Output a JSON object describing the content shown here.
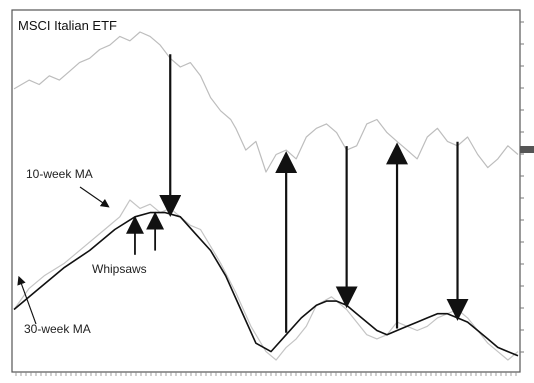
{
  "chart_data": {
    "type": "line",
    "title": "MSCI Italian ETF",
    "xlabel": "",
    "ylabel": "",
    "legend": "none",
    "grid": false,
    "x_range": [
      0,
      100
    ],
    "price_panel": {
      "series": [
        {
          "name": "MSCI Italian ETF",
          "x": [
            0,
            3,
            5,
            7,
            9,
            11,
            13,
            15,
            17,
            19,
            21,
            23,
            25,
            27,
            29,
            31,
            33,
            35,
            37,
            39,
            41,
            43,
            44,
            46,
            48,
            50,
            52,
            54,
            56,
            58,
            60,
            62,
            64,
            66,
            68,
            70,
            72,
            74,
            76,
            78,
            80,
            82,
            84,
            86,
            88,
            90,
            92,
            94,
            96,
            98,
            100
          ],
          "values": [
            24,
            26,
            25,
            27,
            26,
            28,
            30,
            31,
            33,
            34,
            36,
            35,
            37,
            36,
            34,
            31,
            29,
            30,
            27,
            22,
            19,
            17,
            15,
            10,
            12,
            5,
            9,
            10,
            8,
            13,
            15,
            16,
            14,
            10,
            11,
            16,
            17,
            14,
            12,
            10,
            8,
            13,
            15,
            12,
            11,
            13,
            9,
            6,
            8,
            11,
            9
          ],
          "color": "#bdbdbd"
        }
      ]
    },
    "ma_panel": {
      "series": [
        {
          "name": "10-week MA",
          "x": [
            0,
            3,
            6,
            10,
            14,
            18,
            21,
            23,
            25,
            27,
            29,
            31,
            33,
            35,
            37,
            39,
            41,
            44,
            47,
            50,
            52,
            54,
            56,
            58,
            60,
            63,
            66,
            68,
            70,
            72,
            74,
            76,
            78,
            80,
            82,
            84,
            86,
            88,
            90,
            92,
            94,
            96,
            98,
            100
          ],
          "values": [
            9,
            14,
            17,
            20,
            24,
            28,
            31,
            35,
            33,
            34,
            32,
            33,
            31,
            29,
            28,
            24,
            20,
            13,
            5,
            -1,
            -3,
            0,
            2,
            5,
            10,
            12,
            9,
            6,
            3,
            2,
            3,
            6,
            5,
            4,
            5,
            7,
            8,
            9,
            7,
            4,
            1,
            -1,
            -3,
            -1
          ],
          "color": "#c4c4c4"
        },
        {
          "name": "30-week MA",
          "x": [
            0,
            5,
            10,
            15,
            20,
            24,
            27,
            30,
            33,
            36,
            39,
            42,
            45,
            48,
            51,
            54,
            57,
            60,
            62,
            64,
            66,
            68,
            70,
            72,
            74,
            76,
            78,
            80,
            82,
            84,
            86,
            88,
            90,
            92,
            94,
            96,
            98,
            100
          ],
          "values": [
            9,
            14,
            19,
            23,
            28,
            31,
            32,
            32,
            31,
            27,
            23,
            17,
            9,
            1,
            -1,
            3,
            7,
            10,
            11,
            11,
            10,
            8,
            6,
            4,
            3,
            4,
            5,
            6,
            7,
            8,
            8,
            7,
            6,
            4,
            2,
            0,
            -1,
            -2
          ],
          "color": "#111111"
        }
      ]
    },
    "annotations": {
      "ma10_label": "10-week MA",
      "ma30_label": "30-week MA",
      "whipsaws_label": "Whipsaws"
    },
    "signals": [
      {
        "direction": "down",
        "x": 31
      },
      {
        "direction": "up",
        "x": 54
      },
      {
        "direction": "down",
        "x": 66
      },
      {
        "direction": "up",
        "x": 76
      },
      {
        "direction": "down",
        "x": 88
      }
    ],
    "whipsaw_markers": [
      {
        "direction": "up",
        "x": 24
      },
      {
        "direction": "up",
        "x": 28
      }
    ]
  }
}
